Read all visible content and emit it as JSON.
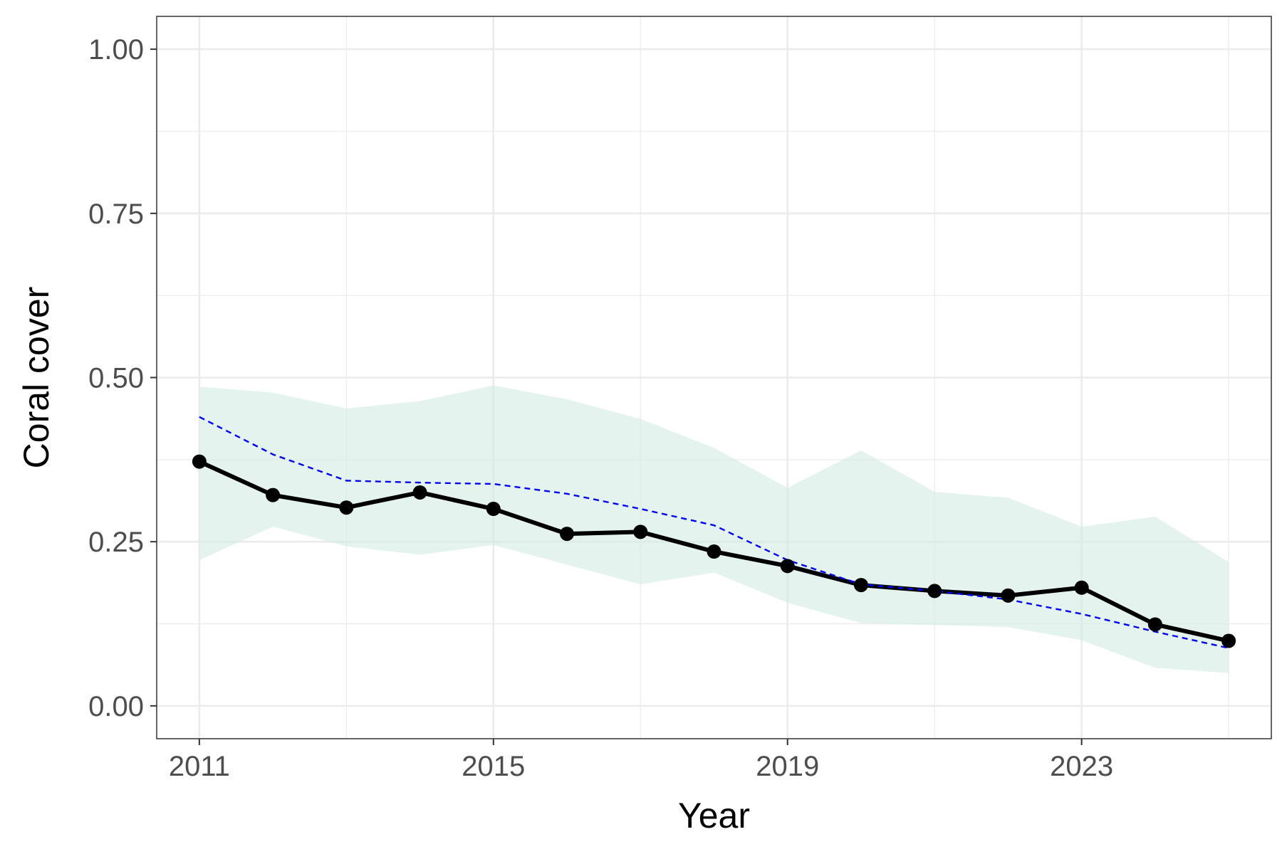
{
  "chart_data": {
    "type": "line",
    "xlabel": "Year",
    "ylabel": "Coral cover",
    "xlim": [
      2010.42,
      2025.58
    ],
    "ylim": [
      -0.05,
      1.05
    ],
    "x_ticks": [
      2011,
      2015,
      2019,
      2023
    ],
    "x_tick_labels": [
      "2011",
      "2015",
      "2019",
      "2023"
    ],
    "y_ticks": [
      0.0,
      0.25,
      0.5,
      0.75,
      1.0
    ],
    "y_tick_labels": [
      "0.00",
      "0.25",
      "0.50",
      "0.75",
      "1.00"
    ],
    "grid": true,
    "legend": "none",
    "x": [
      2011,
      2012,
      2013,
      2014,
      2015,
      2016,
      2017,
      2018,
      2019,
      2020,
      2021,
      2022,
      2023,
      2024,
      2025
    ],
    "series": [
      {
        "style": "solid black line with points",
        "color": "#000000",
        "values": [
          0.372,
          0.321,
          0.302,
          0.325,
          0.3,
          0.262,
          0.265,
          0.235,
          0.213,
          0.184,
          0.175,
          0.168,
          0.18,
          0.124,
          0.099
        ]
      },
      {
        "style": "dashed line",
        "color": "#0000ff",
        "values": [
          0.44,
          0.383,
          0.343,
          0.34,
          0.338,
          0.323,
          0.3,
          0.275,
          0.222,
          0.185,
          0.175,
          0.162,
          0.14,
          0.113,
          0.088
        ]
      }
    ],
    "band": {
      "color": "#d4ebe3",
      "lower": [
        0.222,
        0.273,
        0.243,
        0.23,
        0.245,
        0.215,
        0.185,
        0.203,
        0.157,
        0.126,
        0.123,
        0.12,
        0.1,
        0.058,
        0.05
      ],
      "upper": [
        0.486,
        0.477,
        0.453,
        0.464,
        0.488,
        0.467,
        0.437,
        0.393,
        0.332,
        0.389,
        0.326,
        0.317,
        0.273,
        0.288,
        0.219
      ]
    }
  }
}
